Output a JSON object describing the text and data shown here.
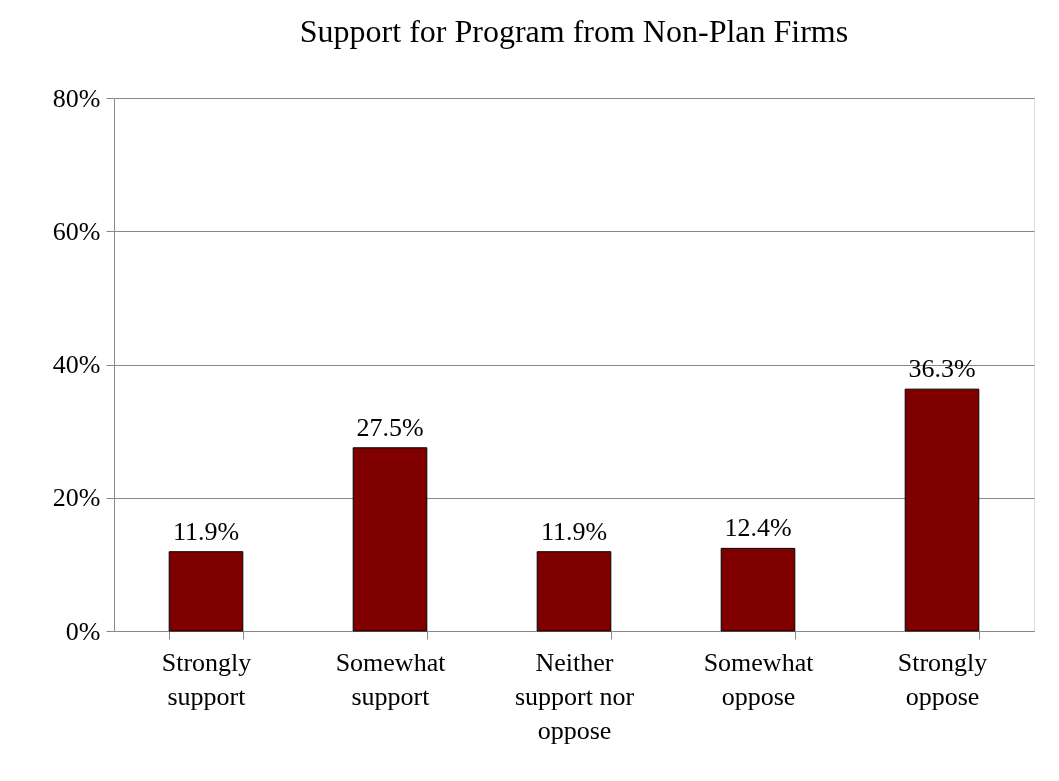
{
  "chart_data": {
    "type": "bar",
    "title": "Support for Program from Non-Plan Firms",
    "categories": [
      "Strongly support",
      "Somewhat support",
      "Neither support nor oppose",
      "Somewhat oppose",
      "Strongly oppose"
    ],
    "values": [
      11.9,
      27.5,
      11.9,
      12.4,
      36.3
    ],
    "value_labels": [
      "11.9%",
      "27.5%",
      "11.9%",
      "12.4%",
      "36.3%"
    ],
    "color": "#800000",
    "ylim": [
      0,
      80
    ],
    "yticks": [
      {
        "value": 0,
        "label": "0%"
      },
      {
        "value": 20,
        "label": "20%"
      },
      {
        "value": 40,
        "label": "40%"
      },
      {
        "value": 60,
        "label": "60%"
      },
      {
        "value": 80,
        "label": "80%"
      }
    ],
    "grid": "y"
  }
}
